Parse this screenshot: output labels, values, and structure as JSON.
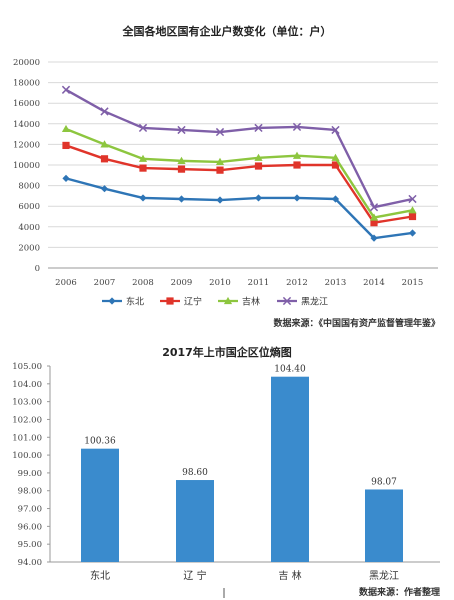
{
  "colors": {
    "blue": "#2e75b6",
    "red": "#e0342a",
    "green": "#8dc63f",
    "purple": "#7f5fa8",
    "bar": "#3a8bcd",
    "grid": "#d9d9d9"
  },
  "chart_data": [
    {
      "type": "line",
      "title": "全国各地区国有企业户数变化（单位：户）",
      "source": "数据来源：《中国国有资产监督管理年鉴》",
      "x": [
        "2006",
        "2007",
        "2008",
        "2009",
        "2010",
        "2011",
        "2012",
        "2013",
        "2014",
        "2015"
      ],
      "ylim": [
        0,
        20000
      ],
      "yticks": [
        "0",
        "2000",
        "4000",
        "6000",
        "8000",
        "10000",
        "12000",
        "14000",
        "16000",
        "18000",
        "20000"
      ],
      "grid": true,
      "legend_position": "bottom",
      "series": [
        {
          "name": "东北",
          "color": "#2e75b6",
          "marker": "diamond",
          "values": [
            8700,
            7700,
            6800,
            6700,
            6600,
            6800,
            6800,
            6700,
            2900,
            3400
          ]
        },
        {
          "name": "辽宁",
          "color": "#e0342a",
          "marker": "square",
          "values": [
            11900,
            10600,
            9700,
            9600,
            9500,
            9900,
            10000,
            10000,
            4400,
            5000
          ]
        },
        {
          "name": "吉林",
          "color": "#8dc63f",
          "marker": "triangle",
          "values": [
            13500,
            12000,
            10600,
            10400,
            10300,
            10700,
            10900,
            10700,
            4900,
            5600
          ]
        },
        {
          "name": "黑龙江",
          "color": "#7f5fa8",
          "marker": "x",
          "values": [
            17300,
            15200,
            13600,
            13400,
            13200,
            13600,
            13700,
            13400,
            5900,
            6700
          ]
        }
      ]
    },
    {
      "type": "bar",
      "title": "2017年上市国企区位熵图",
      "source": "数据来源：作者整理",
      "categories": [
        "东北",
        "辽 宁",
        "吉 林",
        "黑龙江"
      ],
      "values": [
        100.36,
        98.6,
        104.4,
        98.07
      ],
      "value_labels": [
        "100.36",
        "98.60",
        "104.40",
        "98.07"
      ],
      "ylim": [
        94,
        105
      ],
      "yticks": [
        "94.00",
        "95.00",
        "96.00",
        "97.00",
        "98.00",
        "99.00",
        "100.00",
        "101.00",
        "102.00",
        "103.00",
        "104.00",
        "105.00"
      ],
      "grid": false,
      "color": "#3a8bcd"
    }
  ]
}
